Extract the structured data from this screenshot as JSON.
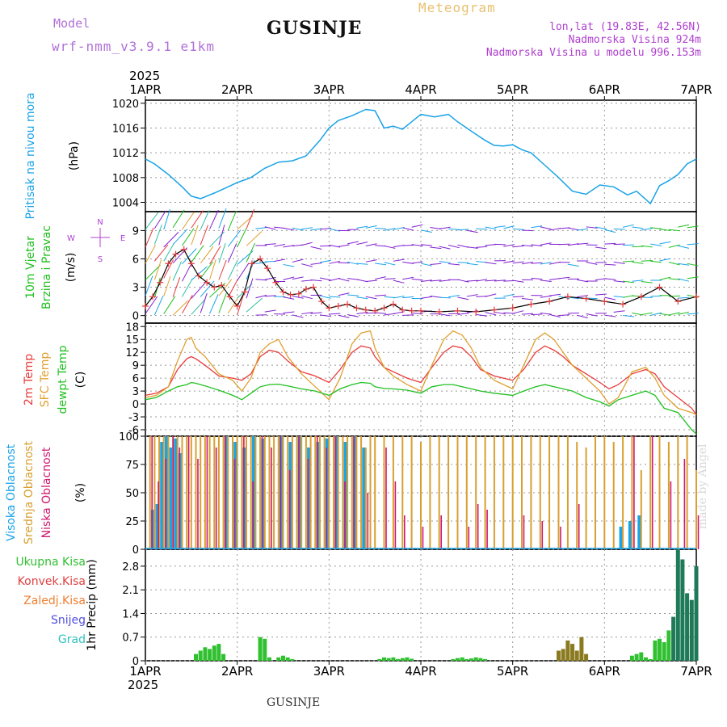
{
  "header": {
    "model_label": "Model",
    "model_name": "wrf-nmm_v3.9.1  e1km",
    "title": "GUSINJE",
    "meteogram_label": "Meteogram",
    "lonlat": "lon,lat (19.83E, 42.56N)",
    "elevation": "Nadmorska Visina 924m",
    "model_elevation": "Nadmorska Visina u modelu 996.153m"
  },
  "footer": {
    "title": "GUSINJE",
    "credit": "made by Angel"
  },
  "time_axis": {
    "year": "2025",
    "labels": [
      "1APR",
      "2APR",
      "3APR",
      "4APR",
      "5APR",
      "6APR",
      "7APR"
    ],
    "days": [
      0,
      1,
      2,
      3,
      4,
      5,
      6
    ]
  },
  "colors": {
    "pressure": "#1aa3e8",
    "temp2m": "#e83a3a",
    "sfc": "#e0a030",
    "dewpt": "#20c020",
    "high_cloud": "#1aa3e8",
    "mid_cloud": "#d8a030",
    "low_cloud": "#d01870",
    "precip_total": "#30c030",
    "precip_conv": "#e04040",
    "precip_grid": "#f08030",
    "snow": "#5050e0",
    "hail": "#30c0c0",
    "wind_speed": "#000000",
    "wind_dir": "#e83a3a"
  },
  "chart_data": [
    {
      "type": "line",
      "panel": "pressure",
      "ylabel": [
        "Pritisak na nivou mora",
        "(hPa)"
      ],
      "yticks": [
        1004,
        1008,
        1012,
        1016,
        1020
      ],
      "ylim": [
        1002.5,
        1020.5
      ],
      "series": [
        {
          "name": "Pritisak na nivou mora",
          "x": [
            0,
            0.1,
            0.25,
            0.4,
            0.5,
            0.6,
            0.75,
            0.9,
            1.0,
            1.15,
            1.3,
            1.45,
            1.6,
            1.75,
            1.9,
            2.0,
            2.1,
            2.25,
            2.4,
            2.5,
            2.6,
            2.7,
            2.8,
            2.9,
            3.0,
            3.15,
            3.3,
            3.4,
            3.5,
            3.6,
            3.7,
            3.8,
            3.9,
            4.0,
            4.1,
            4.2,
            4.35,
            4.5,
            4.65,
            4.8,
            4.95,
            5.1,
            5.25,
            5.35,
            5.5,
            5.6,
            5.7,
            5.8,
            5.9,
            6.0
          ],
          "y": [
            1011,
            1010.2,
            1008.5,
            1006.5,
            1005,
            1004.6,
            1005.5,
            1006.5,
            1007.2,
            1008,
            1009.5,
            1010.5,
            1010.7,
            1011.5,
            1014,
            1016,
            1017.2,
            1018,
            1019,
            1018.8,
            1016,
            1016.3,
            1015.8,
            1017,
            1018.2,
            1017.8,
            1018.2,
            1017,
            1016,
            1015,
            1014,
            1013.2,
            1013.1,
            1013.3,
            1012.5,
            1012,
            1010,
            1008,
            1005.8,
            1005.3,
            1006.8,
            1006.5,
            1005.2,
            1005.8,
            1003.8,
            1006.7,
            1007.5,
            1008.5,
            1010.2,
            1011
          ]
        }
      ]
    },
    {
      "type": "scatter",
      "panel": "wind",
      "ylabel": [
        "10m Vjetar",
        "Brzina i Pravac",
        "(m/s)"
      ],
      "compass": [
        "N",
        "E",
        "S",
        "W"
      ],
      "yticks": [
        0,
        3,
        6,
        9
      ],
      "ylim": [
        -0.8,
        11
      ],
      "series": [
        {
          "name": "Brzina",
          "x": [
            0,
            0.08,
            0.16,
            0.25,
            0.33,
            0.42,
            0.5,
            0.58,
            0.67,
            0.75,
            0.83,
            0.92,
            1.0,
            1.08,
            1.16,
            1.25,
            1.33,
            1.42,
            1.5,
            1.58,
            1.67,
            1.75,
            1.83,
            1.92,
            2.0,
            2.1,
            2.2,
            2.3,
            2.4,
            2.5,
            2.6,
            2.7,
            2.8,
            2.9,
            3.0,
            3.2,
            3.4,
            3.6,
            3.8,
            4.0,
            4.2,
            4.4,
            4.6,
            4.8,
            5.0,
            5.2,
            5.4,
            5.6,
            5.8,
            6.0
          ],
          "y": [
            1,
            2,
            3.5,
            5.5,
            6.5,
            7,
            5.5,
            4.2,
            3.5,
            3,
            3.2,
            2,
            1,
            2.5,
            5.5,
            6,
            5,
            3.5,
            2.5,
            2.2,
            2.3,
            2.8,
            3,
            1.5,
            0.8,
            1,
            1.2,
            0.8,
            0.6,
            0.5,
            0.8,
            1.2,
            0.6,
            0.5,
            0.5,
            0.4,
            0.5,
            0.4,
            0.6,
            0.8,
            1.2,
            1.5,
            2,
            1.8,
            1.5,
            1.2,
            2,
            3,
            1.5,
            2
          ]
        }
      ]
    },
    {
      "type": "line",
      "panel": "temperature",
      "ylabel": [
        "2m Temp",
        "SFC Temp",
        "dewpt Temp",
        "(C)"
      ],
      "yticks": [
        -6,
        -3,
        0,
        3,
        6,
        9,
        12,
        15,
        18
      ],
      "ylim": [
        -7.5,
        18.8
      ],
      "x": [
        0,
        0.12,
        0.25,
        0.35,
        0.45,
        0.5,
        0.55,
        0.65,
        0.8,
        0.95,
        1.05,
        1.15,
        1.25,
        1.35,
        1.45,
        1.55,
        1.7,
        1.85,
        2.0,
        2.12,
        2.25,
        2.35,
        2.45,
        2.5,
        2.6,
        2.7,
        2.85,
        3.0,
        3.12,
        3.25,
        3.35,
        3.45,
        3.55,
        3.65,
        3.8,
        4.0,
        4.12,
        4.25,
        4.35,
        4.45,
        4.55,
        4.65,
        4.8,
        4.95,
        5.05,
        5.15,
        5.3,
        5.45,
        5.55,
        5.65,
        5.8,
        5.95,
        6.0
      ],
      "series": [
        {
          "name": "2m Temp",
          "y": [
            2,
            2.5,
            4,
            8,
            10.5,
            11,
            10.5,
            9,
            6.5,
            6,
            5.5,
            7,
            11,
            12.5,
            12,
            10,
            7.5,
            6.5,
            5,
            8,
            12,
            13.5,
            13,
            11,
            8.5,
            7.5,
            6,
            5,
            8.5,
            12,
            13.5,
            13,
            11,
            8,
            6.5,
            5.5,
            8,
            12,
            13.5,
            12.5,
            11,
            9,
            7,
            5,
            3.5,
            4.5,
            7,
            8,
            7,
            4,
            1.5,
            -1,
            -2.5
          ]
        },
        {
          "name": "SFC Temp",
          "y": [
            1.5,
            2,
            4,
            10,
            15,
            15.5,
            13,
            11,
            7,
            5.5,
            3,
            6,
            12,
            14,
            15,
            11,
            7,
            4,
            1,
            6,
            14,
            16.5,
            17,
            13,
            8.5,
            6.5,
            4.5,
            3,
            9,
            15,
            17,
            16,
            13,
            8.5,
            5.5,
            3.5,
            9,
            15,
            16.5,
            15,
            12,
            9,
            6,
            3,
            0,
            1.5,
            7.5,
            8.5,
            6,
            2,
            -1,
            -2,
            -2.5
          ]
        },
        {
          "name": "dewpt Temp",
          "y": [
            1,
            1.5,
            3,
            4,
            4.5,
            5,
            4.8,
            4.2,
            3.2,
            2,
            1,
            2.5,
            4,
            4.5,
            4.6,
            4.2,
            3.5,
            3,
            2,
            3.5,
            4.5,
            5,
            4.8,
            4,
            3.6,
            3.5,
            3.2,
            2.5,
            4,
            4.5,
            4.5,
            4,
            3.5,
            3,
            2.5,
            2,
            3,
            4,
            4.5,
            4,
            3.5,
            3,
            1.5,
            0.5,
            -0.5,
            1,
            2,
            3,
            2,
            -1,
            -2,
            -6,
            -7
          ]
        }
      ]
    },
    {
      "type": "bar",
      "panel": "cloud",
      "ylabel": [
        "Visoka Oblacnost",
        "Srednja Oblacnost",
        "Niska Oblacnost",
        "(%)"
      ],
      "yticks": [
        0,
        25,
        50,
        75,
        100
      ],
      "ylim": [
        0,
        100
      ],
      "series": [
        {
          "name": "Visoka Oblacnost",
          "x": [
            0.1,
            0.15,
            0.2,
            0.25,
            0.3,
            0.35,
            0.4,
            0.9,
            1.0,
            1.1,
            1.2,
            1.3,
            1.5,
            1.6,
            1.7,
            1.8,
            1.9,
            2.0,
            2.1,
            2.2,
            2.3,
            2.4,
            5.2,
            5.3,
            5.4
          ],
          "y": [
            35,
            40,
            95,
            100,
            90,
            98,
            85,
            100,
            95,
            90,
            100,
            98,
            100,
            95,
            100,
            90,
            95,
            98,
            100,
            95,
            100,
            90,
            20,
            25,
            30
          ]
        },
        {
          "name": "Srednja Oblacnost",
          "x": [
            0.05,
            0.1,
            0.15,
            0.2,
            0.25,
            0.3,
            0.35,
            0.4,
            0.45,
            0.5,
            0.55,
            0.6,
            0.65,
            0.7,
            0.75,
            0.8,
            0.85,
            0.9,
            0.95,
            1.0,
            1.05,
            1.1,
            1.15,
            1.2,
            1.25,
            1.3,
            1.35,
            1.4,
            1.45,
            1.5,
            1.55,
            1.6,
            1.65,
            1.7,
            1.75,
            1.8,
            1.85,
            1.9,
            1.95,
            2.0,
            2.05,
            2.1,
            2.15,
            2.2,
            2.25,
            2.3,
            2.35,
            2.4,
            2.45,
            2.5,
            2.6,
            2.7,
            2.8,
            2.9,
            3.0,
            3.1,
            3.2,
            3.3,
            3.4,
            3.5,
            3.6,
            3.7,
            3.8,
            3.9,
            4.0,
            4.1,
            4.2,
            4.3,
            4.4,
            4.5,
            4.6,
            4.7,
            4.8,
            4.9,
            5.0,
            5.1,
            5.2,
            5.3,
            5.4,
            5.5,
            5.6,
            5.7,
            5.8,
            5.9,
            6.0
          ],
          "y": [
            100,
            100,
            100,
            100,
            100,
            100,
            100,
            100,
            100,
            100,
            100,
            100,
            100,
            100,
            100,
            100,
            100,
            100,
            100,
            100,
            100,
            100,
            100,
            100,
            100,
            100,
            100,
            100,
            100,
            100,
            100,
            100,
            100,
            100,
            100,
            100,
            100,
            100,
            100,
            100,
            100,
            100,
            100,
            100,
            100,
            100,
            100,
            90,
            100,
            100,
            100,
            100,
            100,
            100,
            95,
            100,
            100,
            100,
            100,
            100,
            100,
            100,
            100,
            100,
            100,
            100,
            100,
            100,
            100,
            100,
            100,
            95,
            90,
            100,
            100,
            95,
            100,
            100,
            70,
            100,
            100,
            95,
            100,
            100,
            70
          ]
        },
        {
          "name": "Niska Oblacnost",
          "x": [
            0.05,
            0.12,
            0.2,
            0.28,
            0.35,
            0.45,
            0.55,
            0.65,
            0.75,
            0.85,
            0.95,
            1.05,
            1.15,
            1.25,
            1.35,
            1.45,
            1.55,
            1.65,
            1.75,
            1.85,
            1.95,
            2.05,
            2.15,
            2.25,
            2.4,
            2.6,
            2.7,
            2.8,
            3.0,
            3.2,
            3.5,
            3.6,
            3.7,
            4.1,
            4.3,
            4.5,
            4.7,
            5.3,
            5.5,
            5.7,
            5.85,
            6.0
          ],
          "y": [
            100,
            60,
            80,
            100,
            90,
            100,
            80,
            100,
            90,
            100,
            80,
            100,
            60,
            100,
            90,
            100,
            70,
            100,
            80,
            100,
            90,
            100,
            60,
            100,
            50,
            90,
            60,
            30,
            20,
            30,
            20,
            40,
            35,
            30,
            25,
            20,
            40,
            100,
            100,
            60,
            80,
            30
          ]
        }
      ]
    },
    {
      "type": "bar",
      "panel": "precip",
      "ylabel": [
        "1hr Precip (mm)"
      ],
      "legend": [
        "Ukupna Kisa",
        "Konvek.Kisa",
        "Zaledj.Kisa",
        "Snijeg",
        "Grad"
      ],
      "yticks": [
        0,
        0.7,
        1.4,
        2.1,
        2.8
      ],
      "ylim": [
        0,
        3.3
      ],
      "series": [
        {
          "name": "Ukupna Kisa",
          "x": [
            0.55,
            0.6,
            0.65,
            0.7,
            0.75,
            0.8,
            0.85,
            1.25,
            1.3,
            1.35,
            1.45,
            1.5,
            1.55,
            1.6,
            2.55,
            2.6,
            2.65,
            2.7,
            2.75,
            2.8,
            2.85,
            2.9,
            3.35,
            3.4,
            3.45,
            3.5,
            3.55,
            3.6,
            3.65,
            3.7,
            4.5,
            4.55,
            4.6,
            4.65,
            4.7,
            4.75,
            4.8,
            5.3,
            5.35,
            5.4,
            5.45,
            5.5,
            5.55,
            5.6,
            5.65,
            5.7,
            5.75,
            5.8,
            5.85,
            5.9,
            5.95,
            6.0
          ],
          "y": [
            0.2,
            0.3,
            0.4,
            0.35,
            0.45,
            0.5,
            0.2,
            0.7,
            0.65,
            0.1,
            0.1,
            0.15,
            0.1,
            0.05,
            0.05,
            0.1,
            0.08,
            0.1,
            0.05,
            0.08,
            0.1,
            0.06,
            0.05,
            0.08,
            0.1,
            0.05,
            0.07,
            0.1,
            0.08,
            0.05,
            0.3,
            0.35,
            0.6,
            0.5,
            0.3,
            0.7,
            0.2,
            0.15,
            0.2,
            0.25,
            0.1,
            0.05,
            0.6,
            0.65,
            0.55,
            0.9,
            1.3,
            3.3,
            3.0,
            2.0,
            1.8,
            2.8
          ]
        }
      ]
    }
  ]
}
